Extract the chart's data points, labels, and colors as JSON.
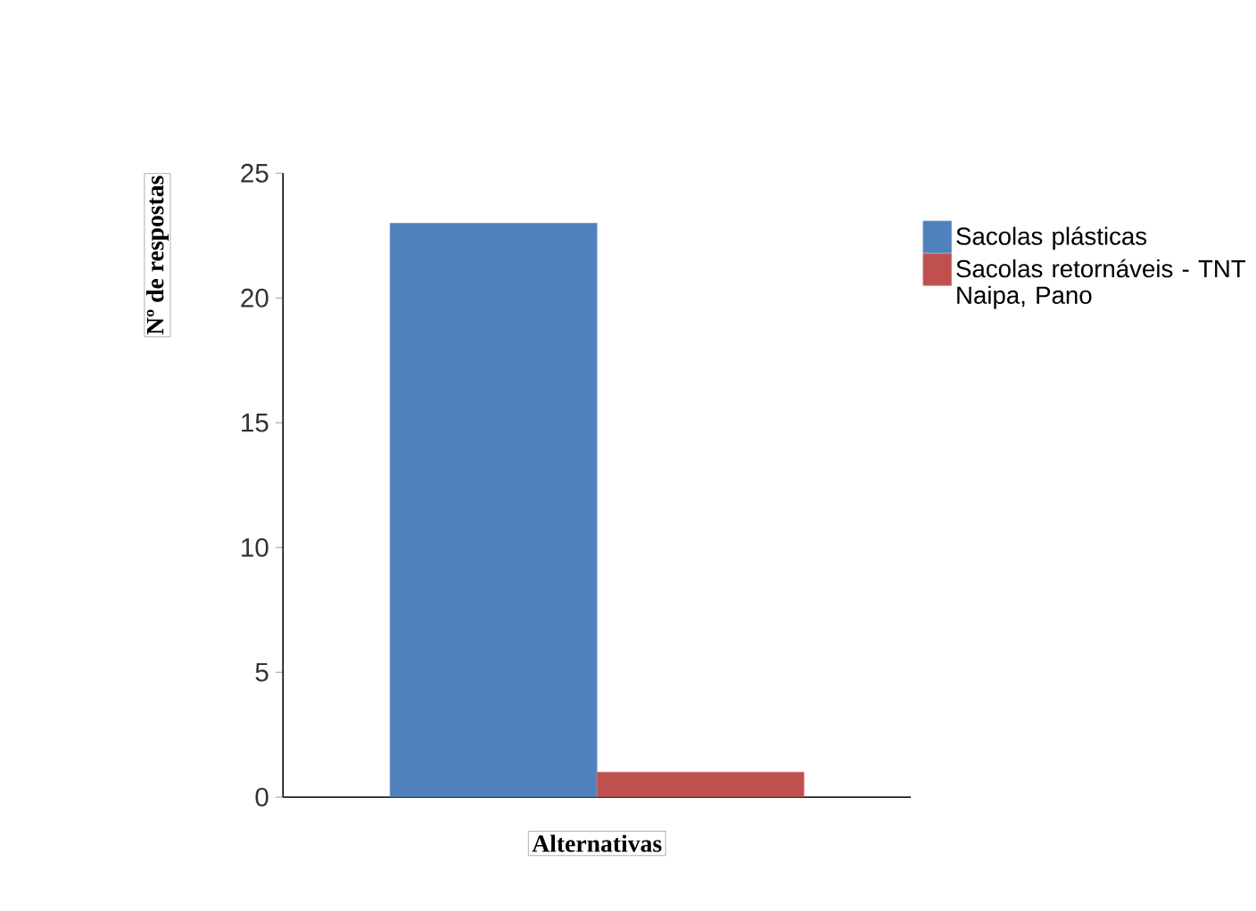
{
  "chart_data": {
    "type": "bar",
    "xlabel": "Alternativas",
    "ylabel": "Nº de respostas",
    "categories": [
      null
    ],
    "series": [
      {
        "name": "Sacolas plásticas",
        "color": "#4f81bd",
        "values": [
          23
        ]
      },
      {
        "name": "Sacolas retornáveis - TNT Naipa, Pano",
        "color": "#c0504d",
        "values": [
          1
        ]
      }
    ],
    "ylim": [
      0,
      25
    ],
    "yticks": [
      0,
      5,
      10,
      15,
      20,
      25
    ],
    "legend": "right",
    "grid": false
  }
}
